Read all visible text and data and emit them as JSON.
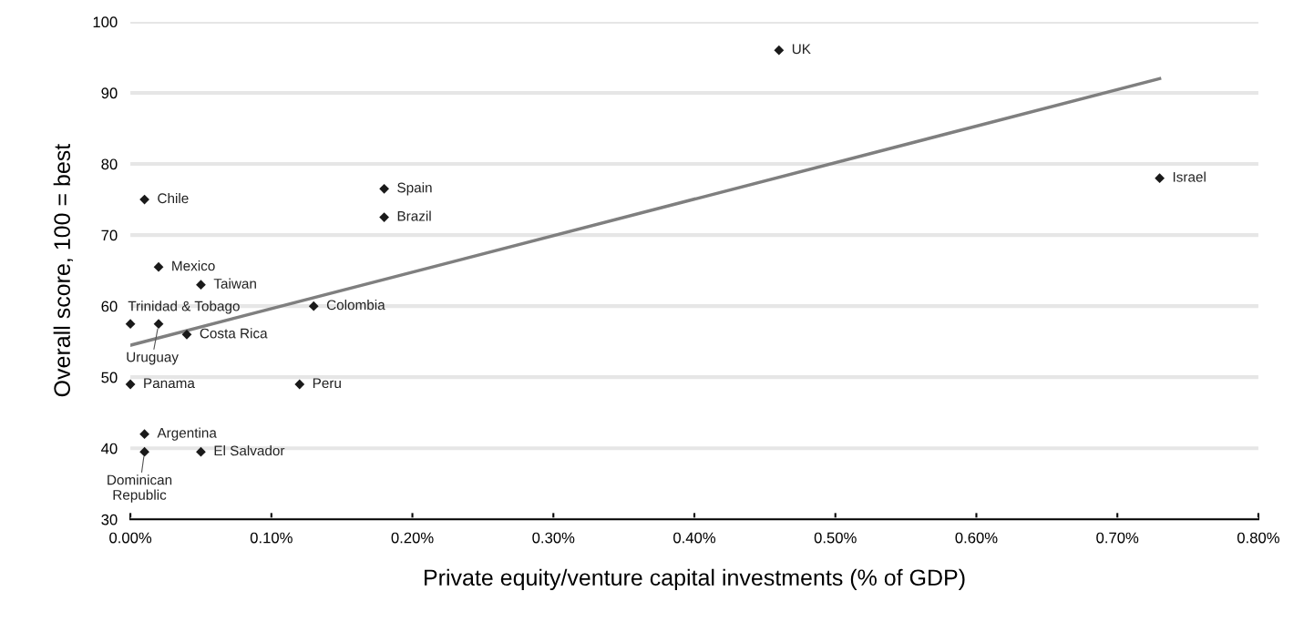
{
  "chart_data": {
    "type": "scatter",
    "xlabel": "Private equity/venture capital investments (% of GDP)",
    "ylabel": "Overall score, 100 = best",
    "xlim": [
      0,
      0.8
    ],
    "ylim": [
      30,
      100
    ],
    "xticks": [
      {
        "value": 0,
        "label": "0.00%"
      },
      {
        "value": 0.1,
        "label": "0.10%"
      },
      {
        "value": 0.2,
        "label": "0.20%"
      },
      {
        "value": 0.3,
        "label": "0.30%"
      },
      {
        "value": 0.4,
        "label": "0.40%"
      },
      {
        "value": 0.5,
        "label": "0.50%"
      },
      {
        "value": 0.6,
        "label": "0.60%"
      },
      {
        "value": 0.7,
        "label": "0.70%"
      },
      {
        "value": 0.8,
        "label": "0.80%"
      }
    ],
    "yticks": [
      30,
      40,
      50,
      60,
      70,
      80,
      90,
      100
    ],
    "grid": "y",
    "series": [
      {
        "marker": "diamond",
        "color": "#1a1a1a",
        "x": [
          0.46,
          0.73,
          0.18,
          0.18,
          0.01,
          0.02,
          0.05,
          0.13,
          0.0,
          0.02,
          0.04,
          0.0,
          0.12,
          0.01,
          0.01,
          0.05
        ],
        "values": [
          96,
          78,
          76.5,
          72.5,
          75,
          65.5,
          63,
          60,
          57.5,
          57.5,
          56,
          49,
          49,
          42,
          39.5,
          39.5
        ]
      },
      {
        "type": "line",
        "marker": "none",
        "color": "#7f7f7f",
        "x": [
          0.0,
          0.73
        ],
        "values": [
          54.5,
          92
        ]
      }
    ],
    "annotations": [
      {
        "text": "UK",
        "x": 0.46,
        "y": 96
      },
      {
        "text": "Israel",
        "x": 0.73,
        "y": 78
      },
      {
        "text": "Spain",
        "x": 0.18,
        "y": 76.5
      },
      {
        "text": "Brazil",
        "x": 0.18,
        "y": 72.5
      },
      {
        "text": "Chile",
        "x": 0.01,
        "y": 75
      },
      {
        "text": "Mexico",
        "x": 0.02,
        "y": 65.5
      },
      {
        "text": "Taiwan",
        "x": 0.05,
        "y": 63
      },
      {
        "text": "Colombia",
        "x": 0.13,
        "y": 60
      },
      {
        "text": "Trinidad & Tobago",
        "x": 0.0,
        "y": 57.5
      },
      {
        "text": "Uruguay",
        "x": 0.02,
        "y": 57.5
      },
      {
        "text": "Costa Rica",
        "x": 0.04,
        "y": 56
      },
      {
        "text": "Panama",
        "x": 0.0,
        "y": 49
      },
      {
        "text": "Peru",
        "x": 0.12,
        "y": 49
      },
      {
        "text": "Argentina",
        "x": 0.01,
        "y": 42
      },
      {
        "text": "Dominican\nRepublic",
        "x": 0.01,
        "y": 39.5
      },
      {
        "text": "El Salvador",
        "x": 0.05,
        "y": 39.5
      }
    ]
  }
}
